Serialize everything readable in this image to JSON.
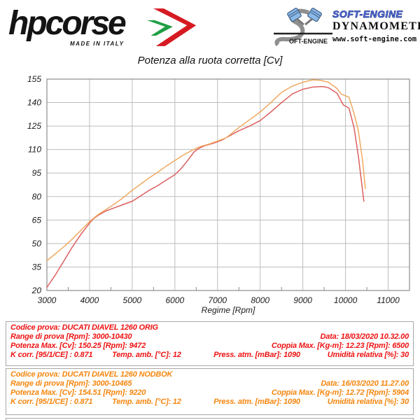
{
  "header": {
    "brand": {
      "name": "hpcorse",
      "tagline": "MADE IN ITALY"
    },
    "dyno": {
      "brand": "SOFT-ENGINE",
      "label": "DYNAMOMETERS",
      "url": "www.soft-engine.com",
      "logo_text": "OFT-ENGINE"
    }
  },
  "chart_data": {
    "type": "line",
    "title": "Potenza alla ruota corretta [Cv]",
    "xlabel": "Regime [Rpm]",
    "ylabel": "",
    "xlim": [
      3000,
      11500
    ],
    "ylim": [
      20,
      155
    ],
    "x_ticks": [
      3000,
      4000,
      5000,
      6000,
      7000,
      8000,
      9000,
      10000,
      11000
    ],
    "y_ticks": [
      20,
      35,
      50,
      65,
      80,
      95,
      110,
      125,
      140,
      155
    ],
    "grid": true,
    "legend_position": "none",
    "series": [
      {
        "name": "DUCATI DIAVEL 1260 ORIG",
        "color": "#dd5f5f",
        "points": [
          [
            3000,
            22
          ],
          [
            3200,
            30
          ],
          [
            3400,
            39
          ],
          [
            3600,
            48
          ],
          [
            3800,
            56
          ],
          [
            4000,
            63
          ],
          [
            4100,
            66
          ],
          [
            4200,
            68
          ],
          [
            4400,
            71
          ],
          [
            4600,
            73
          ],
          [
            4800,
            75
          ],
          [
            5000,
            77
          ],
          [
            5200,
            80.5
          ],
          [
            5400,
            84
          ],
          [
            5600,
            87
          ],
          [
            5800,
            90.5
          ],
          [
            6000,
            94
          ],
          [
            6150,
            98
          ],
          [
            6300,
            103
          ],
          [
            6450,
            108.5
          ],
          [
            6550,
            110.5
          ],
          [
            6700,
            112.5
          ],
          [
            6900,
            114
          ],
          [
            7100,
            116
          ],
          [
            7300,
            119
          ],
          [
            7500,
            122
          ],
          [
            7750,
            125
          ],
          [
            8000,
            128.5
          ],
          [
            8250,
            134
          ],
          [
            8500,
            140
          ],
          [
            8750,
            145.5
          ],
          [
            9000,
            148.5
          ],
          [
            9250,
            150
          ],
          [
            9472,
            150.25
          ],
          [
            9600,
            149.5
          ],
          [
            9800,
            146
          ],
          [
            9950,
            138.5
          ],
          [
            10080,
            136.5
          ],
          [
            10200,
            124
          ],
          [
            10300,
            106
          ],
          [
            10430,
            77
          ]
        ]
      },
      {
        "name": "DUCATI DIAVEL 1260 NODBOK",
        "color": "#f0a95f",
        "points": [
          [
            3000,
            39
          ],
          [
            3200,
            43.5
          ],
          [
            3400,
            48
          ],
          [
            3600,
            53
          ],
          [
            3800,
            58.5
          ],
          [
            4000,
            64
          ],
          [
            4200,
            68.5
          ],
          [
            4400,
            72
          ],
          [
            4600,
            75.5
          ],
          [
            4800,
            79.5
          ],
          [
            5000,
            84
          ],
          [
            5200,
            88
          ],
          [
            5400,
            92
          ],
          [
            5600,
            95.5
          ],
          [
            5800,
            99.5
          ],
          [
            6000,
            103
          ],
          [
            6200,
            106.5
          ],
          [
            6400,
            109.5
          ],
          [
            6600,
            112
          ],
          [
            6800,
            113.5
          ],
          [
            7000,
            115.5
          ],
          [
            7200,
            117.5
          ],
          [
            7500,
            124
          ],
          [
            7750,
            129
          ],
          [
            8000,
            134
          ],
          [
            8250,
            140
          ],
          [
            8500,
            146.5
          ],
          [
            8750,
            150.5
          ],
          [
            9000,
            153
          ],
          [
            9220,
            154.51
          ],
          [
            9400,
            154.3
          ],
          [
            9600,
            153
          ],
          [
            9800,
            149
          ],
          [
            9900,
            145.5
          ],
          [
            10000,
            144.3
          ],
          [
            10080,
            143.5
          ],
          [
            10200,
            133
          ],
          [
            10300,
            122
          ],
          [
            10400,
            103
          ],
          [
            10465,
            85
          ]
        ]
      }
    ]
  },
  "results": [
    {
      "color": "#ee1313",
      "codice": "Codice prova: DUCATI DIAVEL 1260 ORIG",
      "range": "Range di prova [Rpm]: 3000-10430",
      "data": "Data: 18/03/2020  10.32.00",
      "potenza": "Potenza Max. [Cv]: 150.25  [Rpm]: 9472",
      "coppia": "Coppia Max. [Kg-m]: 12.23  [Rpm]: 6500",
      "kcorr": "K corr. [95/1/CE] : 0.871",
      "temp": "Temp. amb. [°C]: 12",
      "press": "Press. atm. [mBar]: 1090",
      "umidita": "Umidità relativa [%]: 30"
    },
    {
      "color": "#f5860f",
      "codice": "Codice prova: DUCATI DIAVEL 1260 NODBOK",
      "range": "Range di prova [Rpm]: 3000-10465",
      "data": "Data: 16/03/2020  11.27.00",
      "potenza": "Potenza Max. [Cv]: 154.51  [Rpm]: 9220",
      "coppia": "Coppia Max. [Kg-m]: 12.72  [Rpm]: 5904",
      "kcorr": "K corr. [95/1/CE] : 0.871",
      "temp": "Temp. amb. [°C]: 12",
      "press": "Press. atm. [mBar]: 1090",
      "umidita": "Umidità relativa [%]: 30"
    }
  ]
}
